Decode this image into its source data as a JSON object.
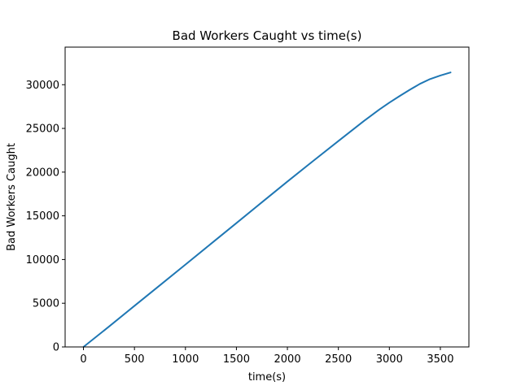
{
  "chart_data": {
    "type": "line",
    "title": "Bad Workers Caught vs time(s)",
    "xlabel": "time(s)",
    "ylabel": "Bad Workers Caught",
    "xlim": [
      -180,
      3780
    ],
    "ylim": [
      0,
      34300
    ],
    "xticks": [
      0,
      500,
      1000,
      1500,
      2000,
      2500,
      3000,
      3500
    ],
    "yticks": [
      0,
      5000,
      10000,
      15000,
      20000,
      25000,
      30000
    ],
    "grid": false,
    "series": [
      {
        "color": "#1f77b4",
        "x": [
          0,
          250,
          500,
          750,
          1000,
          1250,
          1500,
          1750,
          2000,
          2250,
          2500,
          2750,
          2900,
          3000,
          3100,
          3200,
          3300,
          3400,
          3500,
          3600
        ],
        "y": [
          0,
          2330,
          4700,
          7060,
          9420,
          11800,
          14170,
          16550,
          18920,
          21250,
          23560,
          25850,
          27150,
          27950,
          28700,
          29420,
          30100,
          30650,
          31050,
          31400
        ]
      }
    ]
  }
}
